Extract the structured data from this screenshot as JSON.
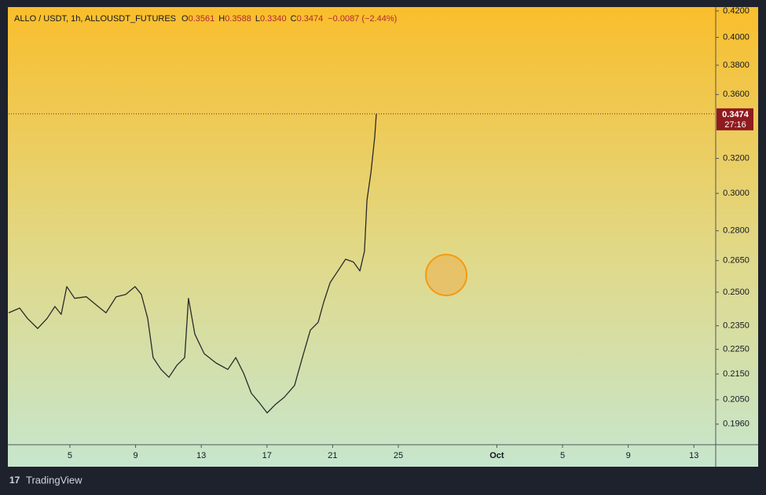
{
  "chart_data": {
    "type": "line",
    "title": "ALLO / USDT, 1h, ALLOUSDT_FUTURES",
    "ohlc": [
      {
        "key": "O",
        "text": "0.3561"
      },
      {
        "key": "H",
        "text": "0.3588"
      },
      {
        "key": "L",
        "text": "0.3340"
      },
      {
        "key": "C",
        "text": "0.3474"
      }
    ],
    "change": "−0.0087 (−2.44%)",
    "x": [
      1.27,
      1.94,
      2.42,
      3.04,
      3.61,
      4.09,
      4.47,
      4.81,
      5.29,
      6.0,
      6.72,
      7.2,
      7.82,
      8.4,
      8.97,
      9.35,
      9.74,
      10.07,
      10.55,
      11.03,
      11.51,
      11.99,
      12.22,
      12.61,
      13.18,
      13.9,
      14.62,
      15.1,
      15.58,
      16.05,
      16.53,
      17.01,
      17.49,
      18.06,
      18.68,
      19.16,
      19.64,
      20.12,
      20.45,
      20.84,
      21.32,
      21.79,
      22.27,
      22.66,
      22.94,
      23.09,
      23.33,
      23.56,
      23.66
    ],
    "series": [
      {
        "name": "ALLOUSDT",
        "color": "#2a2a2a",
        "values": [
          0.2407,
          0.2428,
          0.2382,
          0.2338,
          0.2382,
          0.2435,
          0.24,
          0.2526,
          0.2472,
          0.2479,
          0.2435,
          0.2407,
          0.2479,
          0.249,
          0.2526,
          0.249,
          0.2382,
          0.2216,
          0.2168,
          0.2137,
          0.2184,
          0.2216,
          0.2472,
          0.2314,
          0.2232,
          0.2194,
          0.2168,
          0.2216,
          0.2153,
          0.2075,
          0.2039,
          0.2001,
          0.2031,
          0.206,
          0.2105,
          0.2216,
          0.2331,
          0.2365,
          0.2453,
          0.2544,
          0.26,
          0.2657,
          0.2643,
          0.26,
          0.2696,
          0.2962,
          0.3116,
          0.3326,
          0.3474
        ]
      }
    ],
    "last_price": 0.3474,
    "countdown": "27:16",
    "log_scale": true,
    "xlim": [
      1.27,
      44.28
    ],
    "xticks": [
      5,
      9,
      13,
      17,
      21,
      25,
      {
        "value": 31,
        "label": "Oct"
      },
      {
        "value": 35,
        "label": "5"
      },
      {
        "value": 39,
        "label": "9"
      },
      {
        "value": 43,
        "label": "13"
      }
    ],
    "ylim": [
      0.1887,
      0.4224
    ],
    "yticks": [
      {
        "value": 0.42,
        "label": "0.4200"
      },
      {
        "value": 0.4,
        "label": "0.4000"
      },
      {
        "value": 0.38,
        "label": "0.3800"
      },
      {
        "value": 0.36,
        "label": "0.3600"
      },
      {
        "value": 0.32,
        "label": "0.3200"
      },
      {
        "value": 0.3,
        "label": "0.3000"
      },
      {
        "value": 0.28,
        "label": "0.2800"
      },
      {
        "value": 0.265,
        "label": "0.2650"
      },
      {
        "value": 0.25,
        "label": "0.2500"
      },
      {
        "value": 0.235,
        "label": "0.2350"
      },
      {
        "value": 0.225,
        "label": "0.2250"
      },
      {
        "value": 0.215,
        "label": "0.2150"
      },
      {
        "value": 0.205,
        "label": "0.2050"
      },
      {
        "value": 0.196,
        "label": "0.1960"
      }
    ]
  },
  "brand": "TradingView"
}
